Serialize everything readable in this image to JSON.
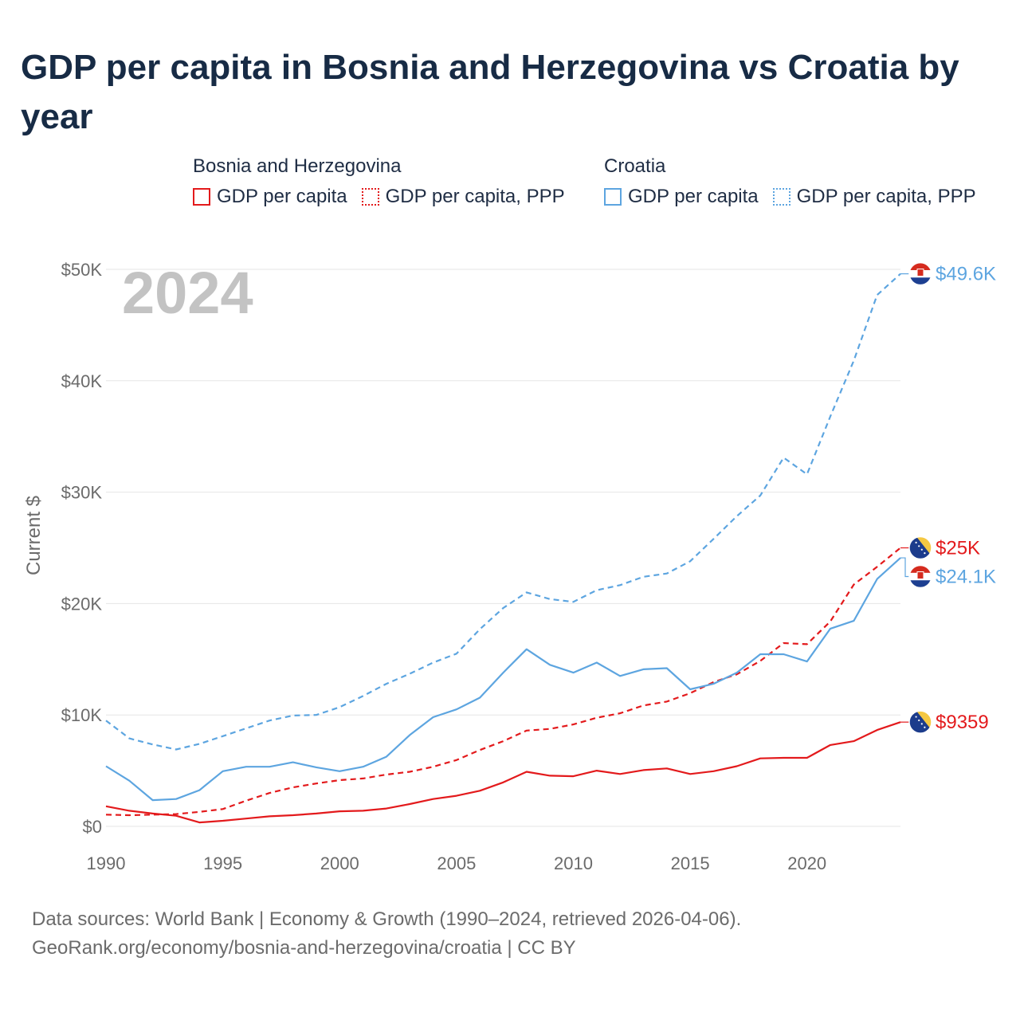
{
  "title": "GDP per capita in Bosnia and Herzegovina vs Croatia by year",
  "legend": {
    "groups": [
      {
        "name": "Bosnia and Herzegovina",
        "items": [
          {
            "label": "GDP per capita",
            "style": "solid",
            "color": "#e31a1c"
          },
          {
            "label": "GDP per capita, PPP",
            "style": "dotted",
            "color": "#e31a1c"
          }
        ]
      },
      {
        "name": "Croatia",
        "items": [
          {
            "label": "GDP per capita",
            "style": "solid",
            "color": "#5da5e0"
          },
          {
            "label": "GDP per capita, PPP",
            "style": "dotted",
            "color": "#5da5e0"
          }
        ]
      }
    ]
  },
  "chart_data": {
    "type": "line",
    "current_year_label": "2024",
    "ylabel": "Current $",
    "xlabel": "",
    "xlim": [
      1990,
      2024
    ],
    "ylim": [
      0,
      50000
    ],
    "x_ticks": [
      "1990",
      "1995",
      "2000",
      "2005",
      "2010",
      "2015",
      "2020"
    ],
    "y_ticks": [
      {
        "value": 0,
        "label": "$0"
      },
      {
        "value": 10000,
        "label": "$10K"
      },
      {
        "value": 20000,
        "label": "$20K"
      },
      {
        "value": 30000,
        "label": "$30K"
      },
      {
        "value": 40000,
        "label": "$40K"
      },
      {
        "value": 50000,
        "label": "$50K"
      }
    ],
    "x": [
      1990,
      1991,
      1992,
      1993,
      1994,
      1995,
      1996,
      1997,
      1998,
      1999,
      2000,
      2001,
      2002,
      2003,
      2004,
      2005,
      2006,
      2007,
      2008,
      2009,
      2010,
      2011,
      2012,
      2013,
      2014,
      2015,
      2016,
      2017,
      2018,
      2019,
      2020,
      2021,
      2022,
      2023,
      2024
    ],
    "series": [
      {
        "name": "Bosnia and Herzegovina — GDP per capita",
        "color": "#e31a1c",
        "dash": "solid",
        "values": [
          1800,
          1400,
          1150,
          950,
          350,
          500,
          700,
          900,
          1000,
          1150,
          1350,
          1400,
          1600,
          2000,
          2450,
          2750,
          3200,
          3950,
          4900,
          4550,
          4500,
          5000,
          4700,
          5050,
          5200,
          4700,
          4950,
          5400,
          6100,
          6150,
          6150,
          7300,
          7650,
          8650,
          9359
        ],
        "end_label": "$9359",
        "end_flag": "bosnia"
      },
      {
        "name": "Bosnia and Herzegovina — GDP per capita, PPP",
        "color": "#e31a1c",
        "dash": "dashed",
        "values": [
          1050,
          1000,
          1050,
          1100,
          1300,
          1550,
          2300,
          3000,
          3500,
          3850,
          4150,
          4300,
          4650,
          4900,
          5350,
          5950,
          6850,
          7650,
          8600,
          8750,
          9150,
          9750,
          10150,
          10850,
          11200,
          11950,
          12950,
          13650,
          14850,
          16450,
          16350,
          18400,
          21700,
          23300,
          25000
        ],
        "end_label": "$25K",
        "end_flag": "bosnia"
      },
      {
        "name": "Croatia — GDP per capita",
        "color": "#5da5e0",
        "dash": "solid",
        "values": [
          5400,
          4100,
          2350,
          2450,
          3250,
          4950,
          5350,
          5350,
          5750,
          5300,
          4950,
          5350,
          6250,
          8200,
          9800,
          10500,
          11550,
          13800,
          15900,
          14500,
          13800,
          14700,
          13500,
          14100,
          14200,
          12300,
          12800,
          13800,
          15450,
          15450,
          14800,
          17750,
          18450,
          22200,
          24100
        ],
        "end_label": "$24.1K",
        "end_flag": "croatia"
      },
      {
        "name": "Croatia — GDP per capita, PPP",
        "color": "#5da5e0",
        "dash": "dashed",
        "values": [
          9500,
          7900,
          7350,
          6900,
          7400,
          8100,
          8800,
          9500,
          9950,
          10000,
          10700,
          11700,
          12800,
          13700,
          14700,
          15500,
          17700,
          19600,
          21000,
          20400,
          20150,
          21200,
          21650,
          22400,
          22700,
          23800,
          25800,
          27850,
          29700,
          33100,
          31600,
          36800,
          41800,
          47700,
          49600
        ],
        "end_label": "$49.6K",
        "end_flag": "croatia"
      }
    ]
  },
  "footer": {
    "line1": "Data sources: World Bank | Economy & Growth (1990–2024, retrieved 2026-04-06).",
    "line2": "GeoRank.org/economy/bosnia-and-herzegovina/croatia | CC BY"
  }
}
